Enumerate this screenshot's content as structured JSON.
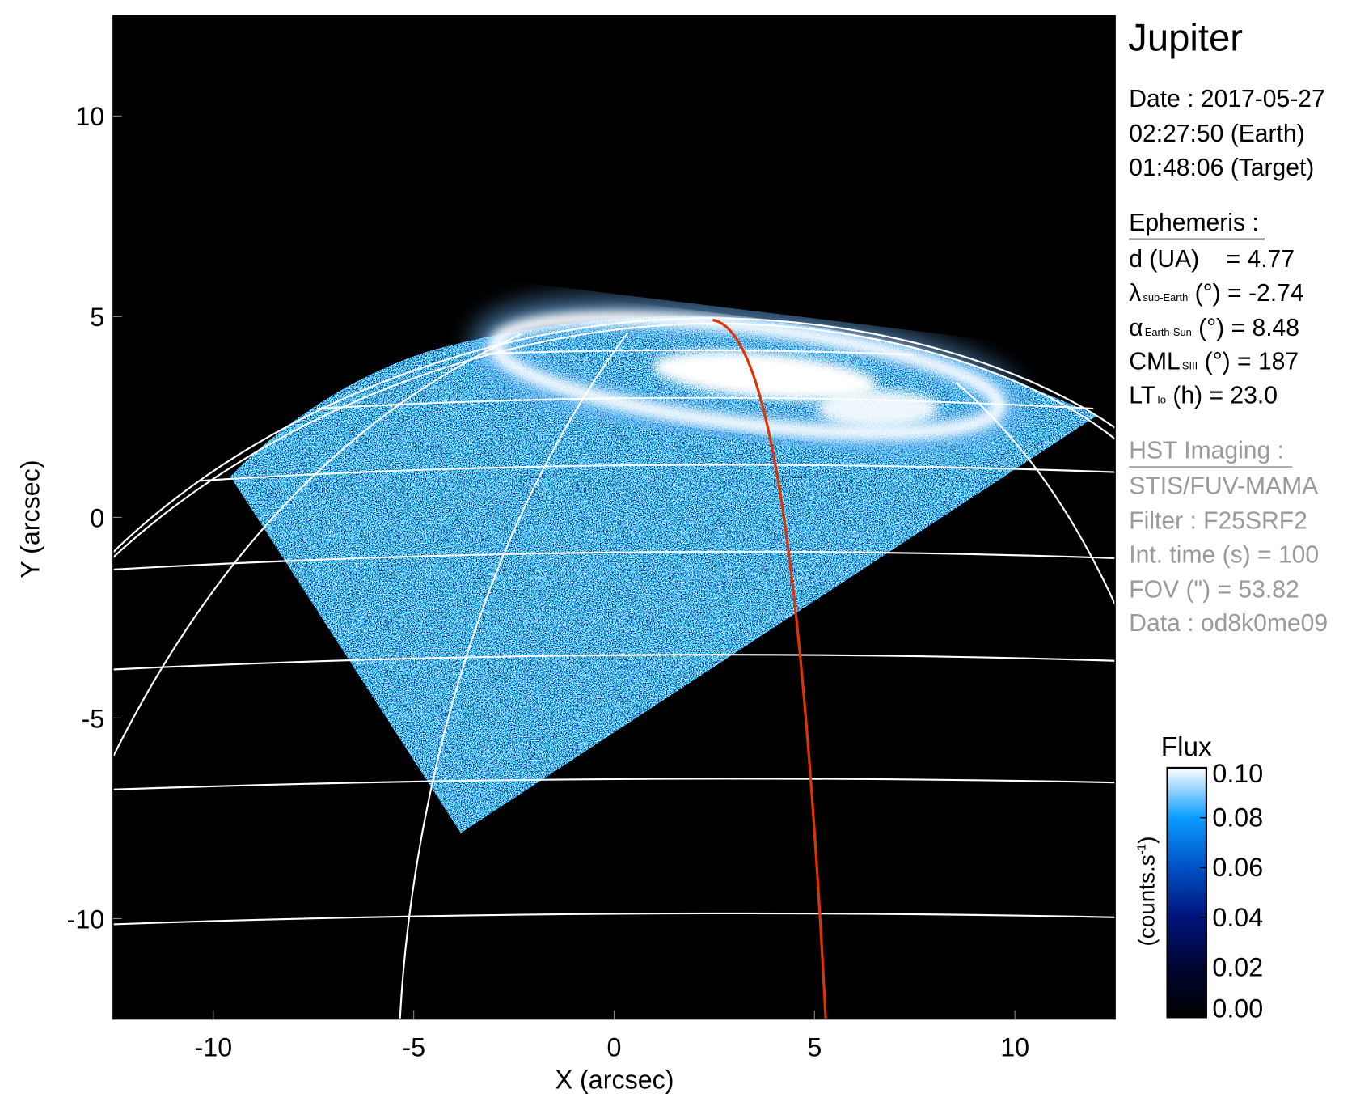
{
  "chart_data": {
    "type": "heatmap",
    "xlabel": "X (arcsec)",
    "ylabel": "Y (arcsec)",
    "xlim": [
      -12.5,
      12.5
    ],
    "ylim": [
      -12.5,
      12.5
    ],
    "xticks": [
      "-10",
      "-5",
      "0",
      "5",
      "10"
    ],
    "xtick_values": [
      -10,
      -5,
      0,
      5,
      10
    ],
    "yticks": [
      "10",
      "5",
      "0",
      "-5",
      "-10"
    ],
    "ytick_values": [
      10,
      5,
      0,
      -5,
      -10
    ],
    "colorbar": {
      "title": "Flux",
      "label": "(counts.s",
      "label_sup": "-1",
      "label_end": ")",
      "range": [
        0.0,
        0.1
      ],
      "ticks": [
        "0.10",
        "0.08",
        "0.06",
        "0.04",
        "0.02",
        "0.00"
      ],
      "tick_values": [
        0.1,
        0.08,
        0.06,
        0.04,
        0.02,
        0.0
      ],
      "colors": [
        "#000000",
        "#000532",
        "#00137a",
        "#0052c4",
        "#0a9cff",
        "#ffffff"
      ]
    },
    "overlay_colors": {
      "grid": "#ffffff",
      "reference_meridian": "#e03300",
      "background": "#000000"
    }
  },
  "info": {
    "target": "Jupiter",
    "date": "Date : 2017-05-27",
    "time_earth": "02:27:50 (Earth)",
    "time_target": "01:48:06 (Target)",
    "ephemeris": {
      "heading": "Ephemeris :",
      "d": "d (UA)    = 4.77",
      "lambda_sym": "λ",
      "lambda_sub": "sub-Earth",
      "lambda_val": " (°) = -2.74",
      "alpha_sym": "α",
      "alpha_sub": "Earth-Sun",
      "alpha_val": " (°) = 8.48",
      "cml_sym": "CML",
      "cml_sub": "SIII",
      "cml_val": " (°) = 187",
      "lt_sym": "LT",
      "lt_sub": "Io",
      "lt_val": " (h) = 23.0"
    },
    "hst": {
      "heading": "HST Imaging :",
      "instrument": "STIS/FUV-MAMA",
      "filter": "Filter : F25SRF2",
      "int_time": "Int. time (s) = 100",
      "fov": "FOV (\") = 53.82",
      "data": "Data : od8k0me09"
    }
  }
}
